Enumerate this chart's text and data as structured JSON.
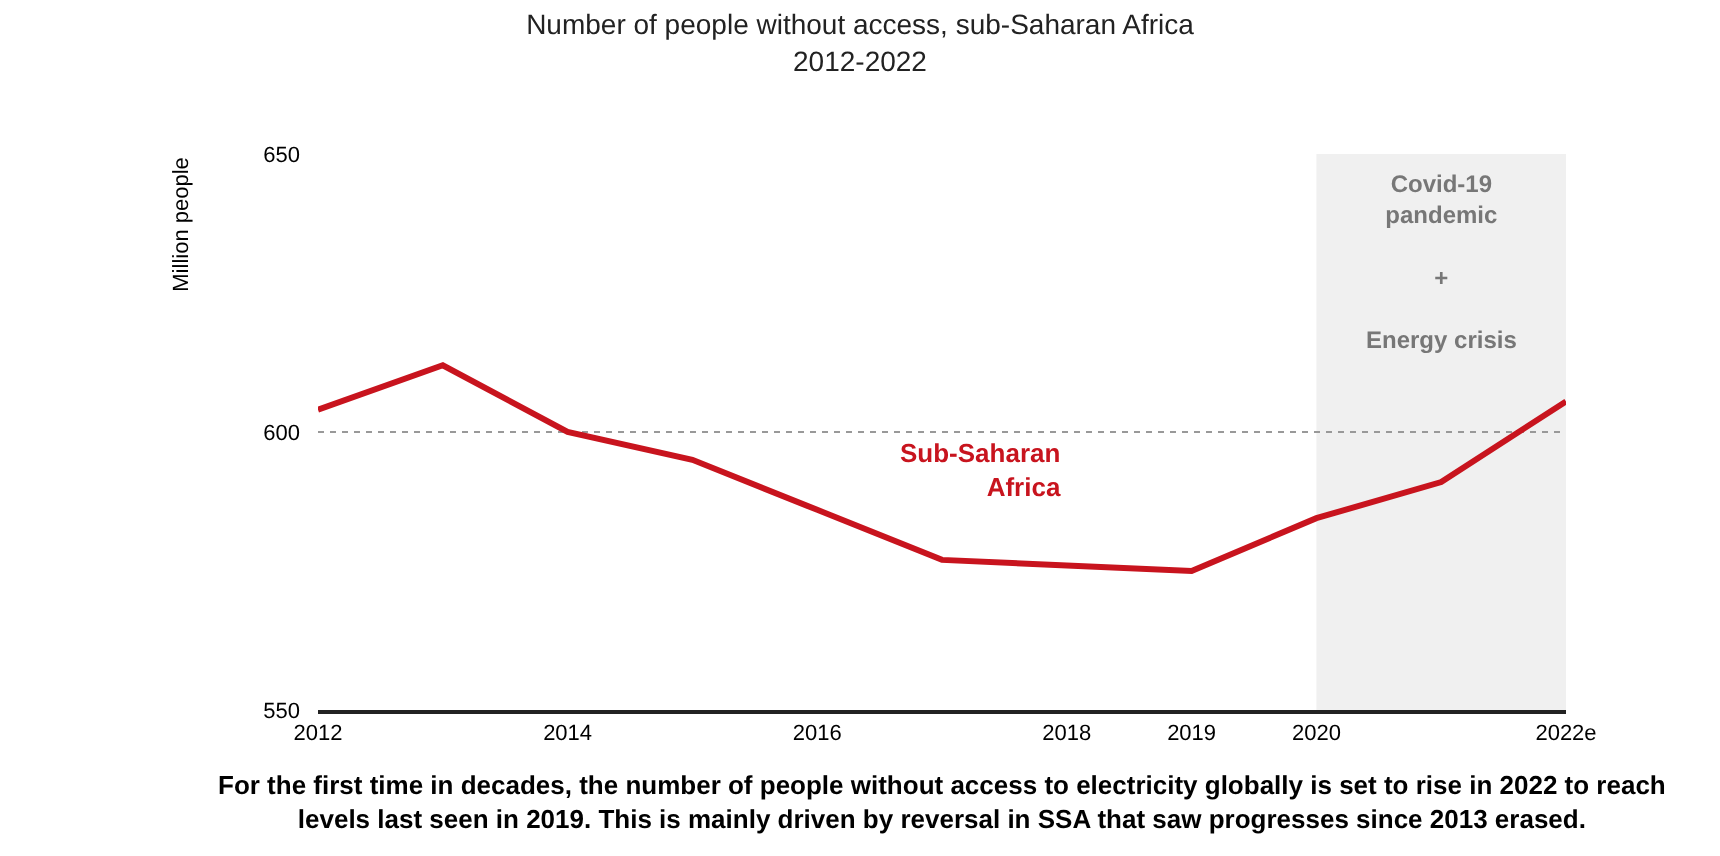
{
  "chart_data": {
    "type": "line",
    "title": "Number of people without access, sub-Saharan Africa\n2012-2022",
    "ylabel": "Million people",
    "x": [
      2012,
      2013,
      2014,
      2015,
      2016,
      2017,
      2018,
      2019,
      2020,
      2021,
      2022
    ],
    "series": [
      {
        "name": "Sub-Saharan Africa",
        "color": "#c8141e",
        "values": [
          604,
          612,
          600,
          595,
          586,
          577,
          576,
          575,
          584.5,
          591,
          605.5
        ]
      }
    ],
    "xlim": [
      2012,
      2022
    ],
    "xticks": [
      2012,
      2014,
      2016,
      2018,
      2019,
      2020,
      {
        "value": 2022,
        "label": "2022e"
      }
    ],
    "ylim": [
      550,
      650
    ],
    "yticks": [
      550,
      600,
      650
    ],
    "grid": "y",
    "line_style": "solid",
    "marker": "none",
    "legend": false,
    "bands": [
      {
        "axis": "x",
        "from": 2020,
        "to": 2022,
        "label": "Covid-19\npandemic\n\n+\n\nEnergy crisis",
        "color": "#f0f0f0"
      }
    ],
    "annotations": [
      "For the first time in decades, the number of people without access to electricity globally is set to rise in 2022 to reach\nlevels last seen in 2019. This is mainly driven by reversal in SSA that saw progresses since 2013 erased."
    ]
  }
}
